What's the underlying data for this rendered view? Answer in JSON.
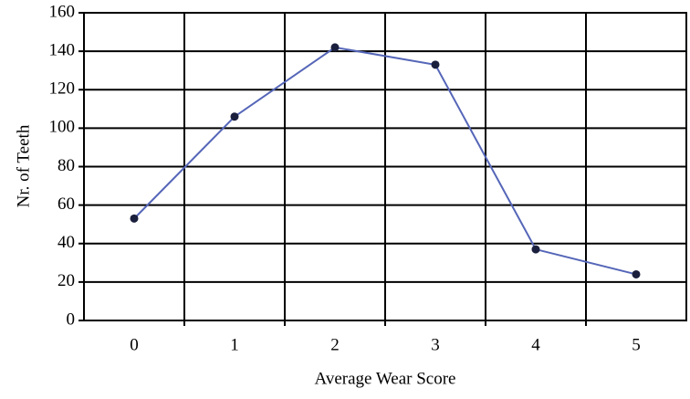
{
  "chart_data": {
    "type": "line",
    "x_label": "Average Wear Score",
    "y_label": "Nr. of Teeth",
    "categories": [
      "0",
      "1",
      "2",
      "3",
      "4",
      "5"
    ],
    "series": [
      {
        "name": "Nr. of Teeth",
        "color": "#5566b8",
        "marker_color": "#1a1f3d",
        "values": [
          53,
          106,
          142,
          133,
          37,
          24
        ]
      }
    ],
    "ylim": [
      0,
      160
    ],
    "yticks": [
      0,
      20,
      40,
      60,
      80,
      100,
      120,
      140,
      160
    ],
    "grid": true
  }
}
